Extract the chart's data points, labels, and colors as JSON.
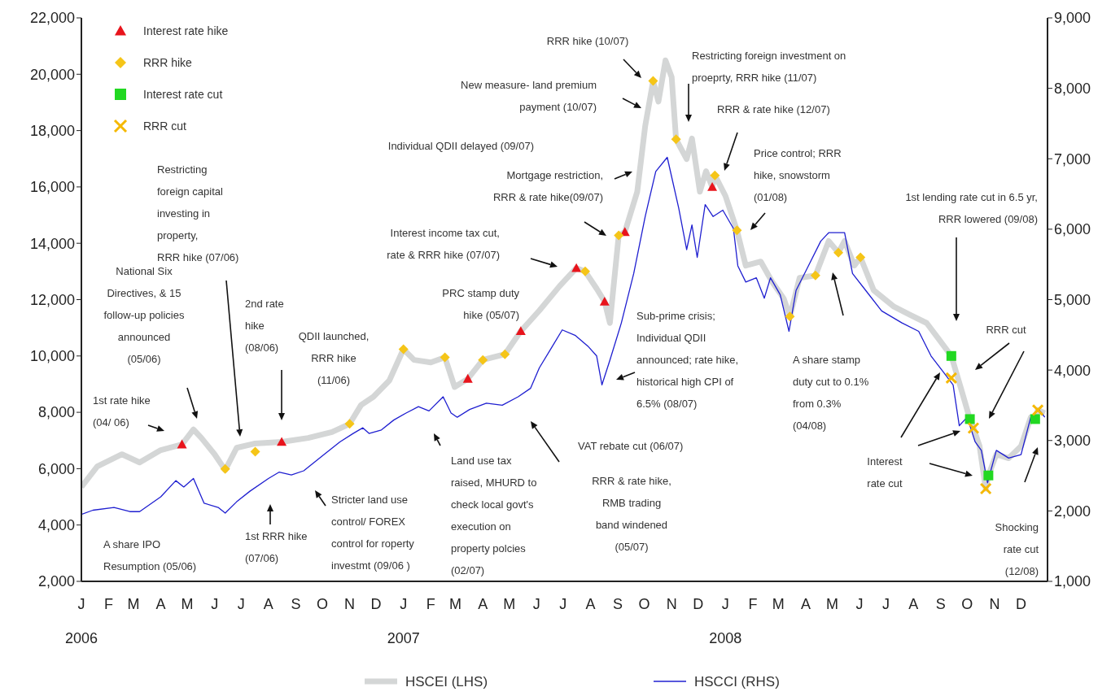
{
  "chart_data": {
    "type": "line",
    "xlim": [
      "2006-01-01",
      "2008-12-31"
    ],
    "xticks": [
      {
        "value": "2006",
        "label": "2006"
      },
      {
        "value": "2007",
        "label": "2007"
      },
      {
        "value": "2008",
        "label": "2008"
      }
    ],
    "ylim": [
      2000,
      22000
    ],
    "yticks": [
      {
        "value": 2000,
        "label": "2,000"
      },
      {
        "value": 4000,
        "label": "4,000"
      },
      {
        "value": 6000,
        "label": "6,000"
      },
      {
        "value": 8000,
        "label": "8,000"
      },
      {
        "value": 10000,
        "label": "10,000"
      },
      {
        "value": 12000,
        "label": "12,000"
      },
      {
        "value": 14000,
        "label": "14,000"
      },
      {
        "value": 16000,
        "label": "16,000"
      },
      {
        "value": 18000,
        "label": "18,000"
      },
      {
        "value": 20000,
        "label": "20,000"
      },
      {
        "value": 22000,
        "label": "22,000"
      }
    ],
    "y2lim": [
      1000,
      9000
    ],
    "y2ticks": [
      {
        "value": 1000,
        "label": "1,000"
      },
      {
        "value": 2000,
        "label": "2,000"
      },
      {
        "value": 3000,
        "label": "3,000"
      },
      {
        "value": 4000,
        "label": "4,000"
      },
      {
        "value": 5000,
        "label": "5,000"
      },
      {
        "value": 6000,
        "label": "6,000"
      },
      {
        "value": 7000,
        "label": "7,000"
      },
      {
        "value": 8000,
        "label": "8,000"
      },
      {
        "value": 9000,
        "label": "9,000"
      }
    ],
    "legend": "bottom left",
    "series": [
      {
        "name": "HSCEI (LHS)",
        "color": "#d4d6d6",
        "x": [
          "2006-01-01",
          "2006-01-19",
          "2006-02-16",
          "2006-03-08",
          "2006-04-01",
          "2006-04-25",
          "2006-05-08",
          "2006-05-17",
          "2006-06-01",
          "2006-06-13",
          "2006-06-26",
          "2006-07-16",
          "2006-08-16",
          "2006-09-15",
          "2006-10-12",
          "2006-11-01",
          "2006-11-14",
          "2006-11-28",
          "2006-12-16",
          "2007-01-01",
          "2007-01-13",
          "2007-02-01",
          "2007-02-17",
          "2007-02-28",
          "2007-03-15",
          "2007-04-01",
          "2007-04-26",
          "2007-05-14",
          "2007-06-04",
          "2007-06-27",
          "2007-07-16",
          "2007-07-26",
          "2007-08-08",
          "2007-08-17",
          "2007-08-23",
          "2007-09-02",
          "2007-09-09",
          "2007-09-23",
          "2007-10-02",
          "2007-10-11",
          "2007-10-17",
          "2007-10-25",
          "2007-11-01",
          "2007-11-06",
          "2007-11-18",
          "2007-11-24",
          "2007-12-03",
          "2007-12-10",
          "2007-12-17",
          "2007-12-20",
          "2008-01-01",
          "2008-01-14",
          "2008-01-24",
          "2008-02-10",
          "2008-02-23",
          "2008-03-07",
          "2008-03-14",
          "2008-03-25",
          "2008-04-12",
          "2008-04-27",
          "2008-05-08",
          "2008-05-15",
          "2008-05-26",
          "2008-06-02",
          "2008-06-17",
          "2008-07-10",
          "2008-07-28",
          "2008-08-16",
          "2008-08-30",
          "2008-09-13",
          "2008-09-24",
          "2008-10-04",
          "2008-10-08",
          "2008-10-15",
          "2008-10-22",
          "2008-10-25",
          "2008-11-03",
          "2008-11-17",
          "2008-12-01",
          "2008-12-12",
          "2008-12-17",
          "2008-12-20",
          "2008-12-28"
        ],
        "values": [
          5350,
          6080,
          6510,
          6220,
          6660,
          6860,
          7390,
          7090,
          6510,
          5950,
          6740,
          6890,
          6950,
          7090,
          7300,
          7590,
          8260,
          8550,
          9130,
          10240,
          9860,
          9770,
          9950,
          8900,
          9190,
          9860,
          10060,
          10880,
          11610,
          12480,
          13120,
          13000,
          12390,
          11930,
          11170,
          14280,
          14400,
          15830,
          18160,
          19760,
          19030,
          20490,
          19900,
          17690,
          16990,
          17720,
          15830,
          16560,
          16000,
          16410,
          15680,
          14460,
          13210,
          13350,
          12630,
          12040,
          11400,
          12770,
          12860,
          14080,
          13670,
          14080,
          13210,
          13500,
          12330,
          11750,
          11460,
          11170,
          10590,
          10000,
          8840,
          7760,
          7440,
          6800,
          5290,
          5760,
          6510,
          6370,
          6800,
          7820,
          7760,
          8080,
          7970
        ]
      },
      {
        "name": "HSCCI (RHS)",
        "axis": "y2",
        "color": "#1f1fd0",
        "x": [
          "2006-01-01",
          "2006-01-14",
          "2006-02-07",
          "2006-02-25",
          "2006-03-08",
          "2006-04-01",
          "2006-04-18",
          "2006-04-27",
          "2006-05-08",
          "2006-05-20",
          "2006-06-05",
          "2006-06-13",
          "2006-06-26",
          "2006-07-11",
          "2006-08-01",
          "2006-08-13",
          "2006-08-27",
          "2006-09-10",
          "2006-10-03",
          "2006-10-21",
          "2006-11-05",
          "2006-11-16",
          "2006-11-23",
          "2006-12-07",
          "2006-12-21",
          "2007-01-04",
          "2007-01-18",
          "2007-01-30",
          "2007-02-15",
          "2007-02-24",
          "2007-03-03",
          "2007-03-17",
          "2007-04-05",
          "2007-04-23",
          "2007-05-11",
          "2007-05-25",
          "2007-06-04",
          "2007-06-18",
          "2007-06-30",
          "2007-07-15",
          "2007-07-29",
          "2007-08-08",
          "2007-08-14",
          "2007-08-23",
          "2007-09-05",
          "2007-09-19",
          "2007-10-02",
          "2007-10-14",
          "2007-10-27",
          "2007-11-09",
          "2007-11-18",
          "2007-11-24",
          "2007-11-30",
          "2007-12-09",
          "2007-12-18",
          "2007-12-29",
          "2008-01-10",
          "2008-01-15",
          "2008-01-24",
          "2008-02-05",
          "2008-02-14",
          "2008-02-21",
          "2008-03-03",
          "2008-03-13",
          "2008-03-21",
          "2008-04-04",
          "2008-04-18",
          "2008-04-27",
          "2008-05-15",
          "2008-05-24",
          "2008-06-08",
          "2008-06-26",
          "2008-07-19",
          "2008-08-07",
          "2008-08-21",
          "2008-09-04",
          "2008-09-15",
          "2008-09-22",
          "2008-10-01",
          "2008-10-10",
          "2008-10-17",
          "2008-10-24",
          "2008-11-03",
          "2008-11-17",
          "2008-12-01",
          "2008-12-12",
          "2008-12-21",
          "2008-12-28"
        ],
        "values": [
          1950,
          2010,
          2050,
          1990,
          1990,
          2200,
          2430,
          2340,
          2460,
          2110,
          2050,
          1970,
          2130,
          2280,
          2460,
          2550,
          2510,
          2570,
          2800,
          2980,
          3100,
          3180,
          3100,
          3150,
          3290,
          3390,
          3480,
          3420,
          3620,
          3390,
          3330,
          3440,
          3530,
          3500,
          3620,
          3740,
          4030,
          4320,
          4570,
          4490,
          4340,
          4200,
          3790,
          4140,
          4670,
          5370,
          6180,
          6820,
          7020,
          6300,
          5710,
          6060,
          5600,
          6350,
          6180,
          6270,
          6010,
          5480,
          5250,
          5310,
          5020,
          5310,
          5070,
          4550,
          5130,
          5480,
          5830,
          5950,
          5950,
          5370,
          5130,
          4840,
          4670,
          4550,
          4200,
          3970,
          3790,
          3210,
          3330,
          2980,
          2860,
          2400,
          2860,
          2750,
          2800,
          3330,
          3440,
          3330
        ]
      },
      {
        "name": "Interest rate hike",
        "type": "scatter",
        "marker": "triangle",
        "color": "#e8141c",
        "x": [
          "2006-04-25",
          "2006-08-16",
          "2007-03-15",
          "2007-05-14",
          "2007-07-16",
          "2007-08-17",
          "2007-09-09",
          "2007-12-17"
        ],
        "values": [
          6860,
          6950,
          9190,
          10880,
          13120,
          11930,
          14400,
          16000
        ]
      },
      {
        "name": "RRR hike",
        "type": "scatter",
        "marker": "diamond",
        "color": "#f5c518",
        "x": [
          "2006-06-13",
          "2006-07-17",
          "2006-11-01",
          "2007-01-01",
          "2007-02-17",
          "2007-04-01",
          "2007-04-26",
          "2007-07-26",
          "2007-09-02",
          "2007-10-11",
          "2007-11-06",
          "2007-12-20",
          "2008-01-14",
          "2008-03-14",
          "2008-04-12",
          "2008-05-08",
          "2008-06-02"
        ],
        "values": [
          5990,
          6600,
          7590,
          10240,
          9950,
          9860,
          10060,
          13000,
          14280,
          19760,
          17690,
          16410,
          14460,
          11400,
          12860,
          13670,
          13500
        ]
      },
      {
        "name": "Interest rate cut",
        "type": "scatter",
        "marker": "square",
        "color": "#22d822",
        "x": [
          "2008-09-13",
          "2008-10-04",
          "2008-10-25",
          "2008-12-17"
        ],
        "values": [
          10000,
          7760,
          5760,
          7760
        ]
      },
      {
        "name": "RRR cut",
        "type": "scatter",
        "marker": "cross",
        "color": "#f5b800",
        "x": [
          "2008-09-13",
          "2008-10-08",
          "2008-10-22",
          "2008-12-20"
        ],
        "values": [
          9220,
          7440,
          5290,
          8080
        ]
      }
    ],
    "annotations": [
      "National Six\nDirectives, & 15\nfollow-up policies\nannounced\n(05/06)",
      "Restricting\nforeign capital\ninvesting in\nproperty,\nRRR hike  (07/06)",
      "1st rate hike\n(04/ 06)",
      "2nd rate\nhike\n(08/06)",
      "QDII launched,\nRRR hike\n(11/06)",
      "A share IPO\nResumption  (05/06)",
      "1st RRR hike\n(07/06)",
      "Stricter land use\ncontrol/ FOREX\ncontrol for roperty\ninvestmt (09/06 )",
      "Land use tax\nraised, MHURD to\ncheck local govt's\nexecution on\nproperty polcies\n(02/07)",
      "RRR & rate hike,\nRMB trading\nband windened\n(05/07)",
      "VAT rebate cut (06/07)",
      "PRC stamp duty\nhike (05/07)",
      "Interest income tax cut,\nrate & RRR hike (07/07)",
      "Mortgage restriction,\nRRR & rate hike(09/07)",
      "Individual QDII delayed (09/07)",
      "New measure- land premium\npayment (10/07)",
      "RRR hike (10/07)",
      "Restricting foreign investment on\nproeprty, RRR hike (11/07)",
      "RRR & rate hike (12/07)",
      "Price control; RRR\nhike,  snowstorm\n(01/08)",
      "Sub-prime crisis;\nIndividual  QDII\nannounced; rate hike,\nhistorical high CPI of\n6.5%  (08/07)",
      "A share  stamp\nduty cut to 0.1%\nfrom 0.3%\n(04/08)",
      "1st lending rate cut in 6.5 yr,\nRRR lowered (09/08)",
      "RRR cut",
      "Interest\nrate cut",
      "Shocking\nrate  cut\n(12/08)",
      "J F M A M J J A S O N D",
      "J F M A M J J A S O N D",
      "J F M A M J J A S O N D"
    ]
  }
}
